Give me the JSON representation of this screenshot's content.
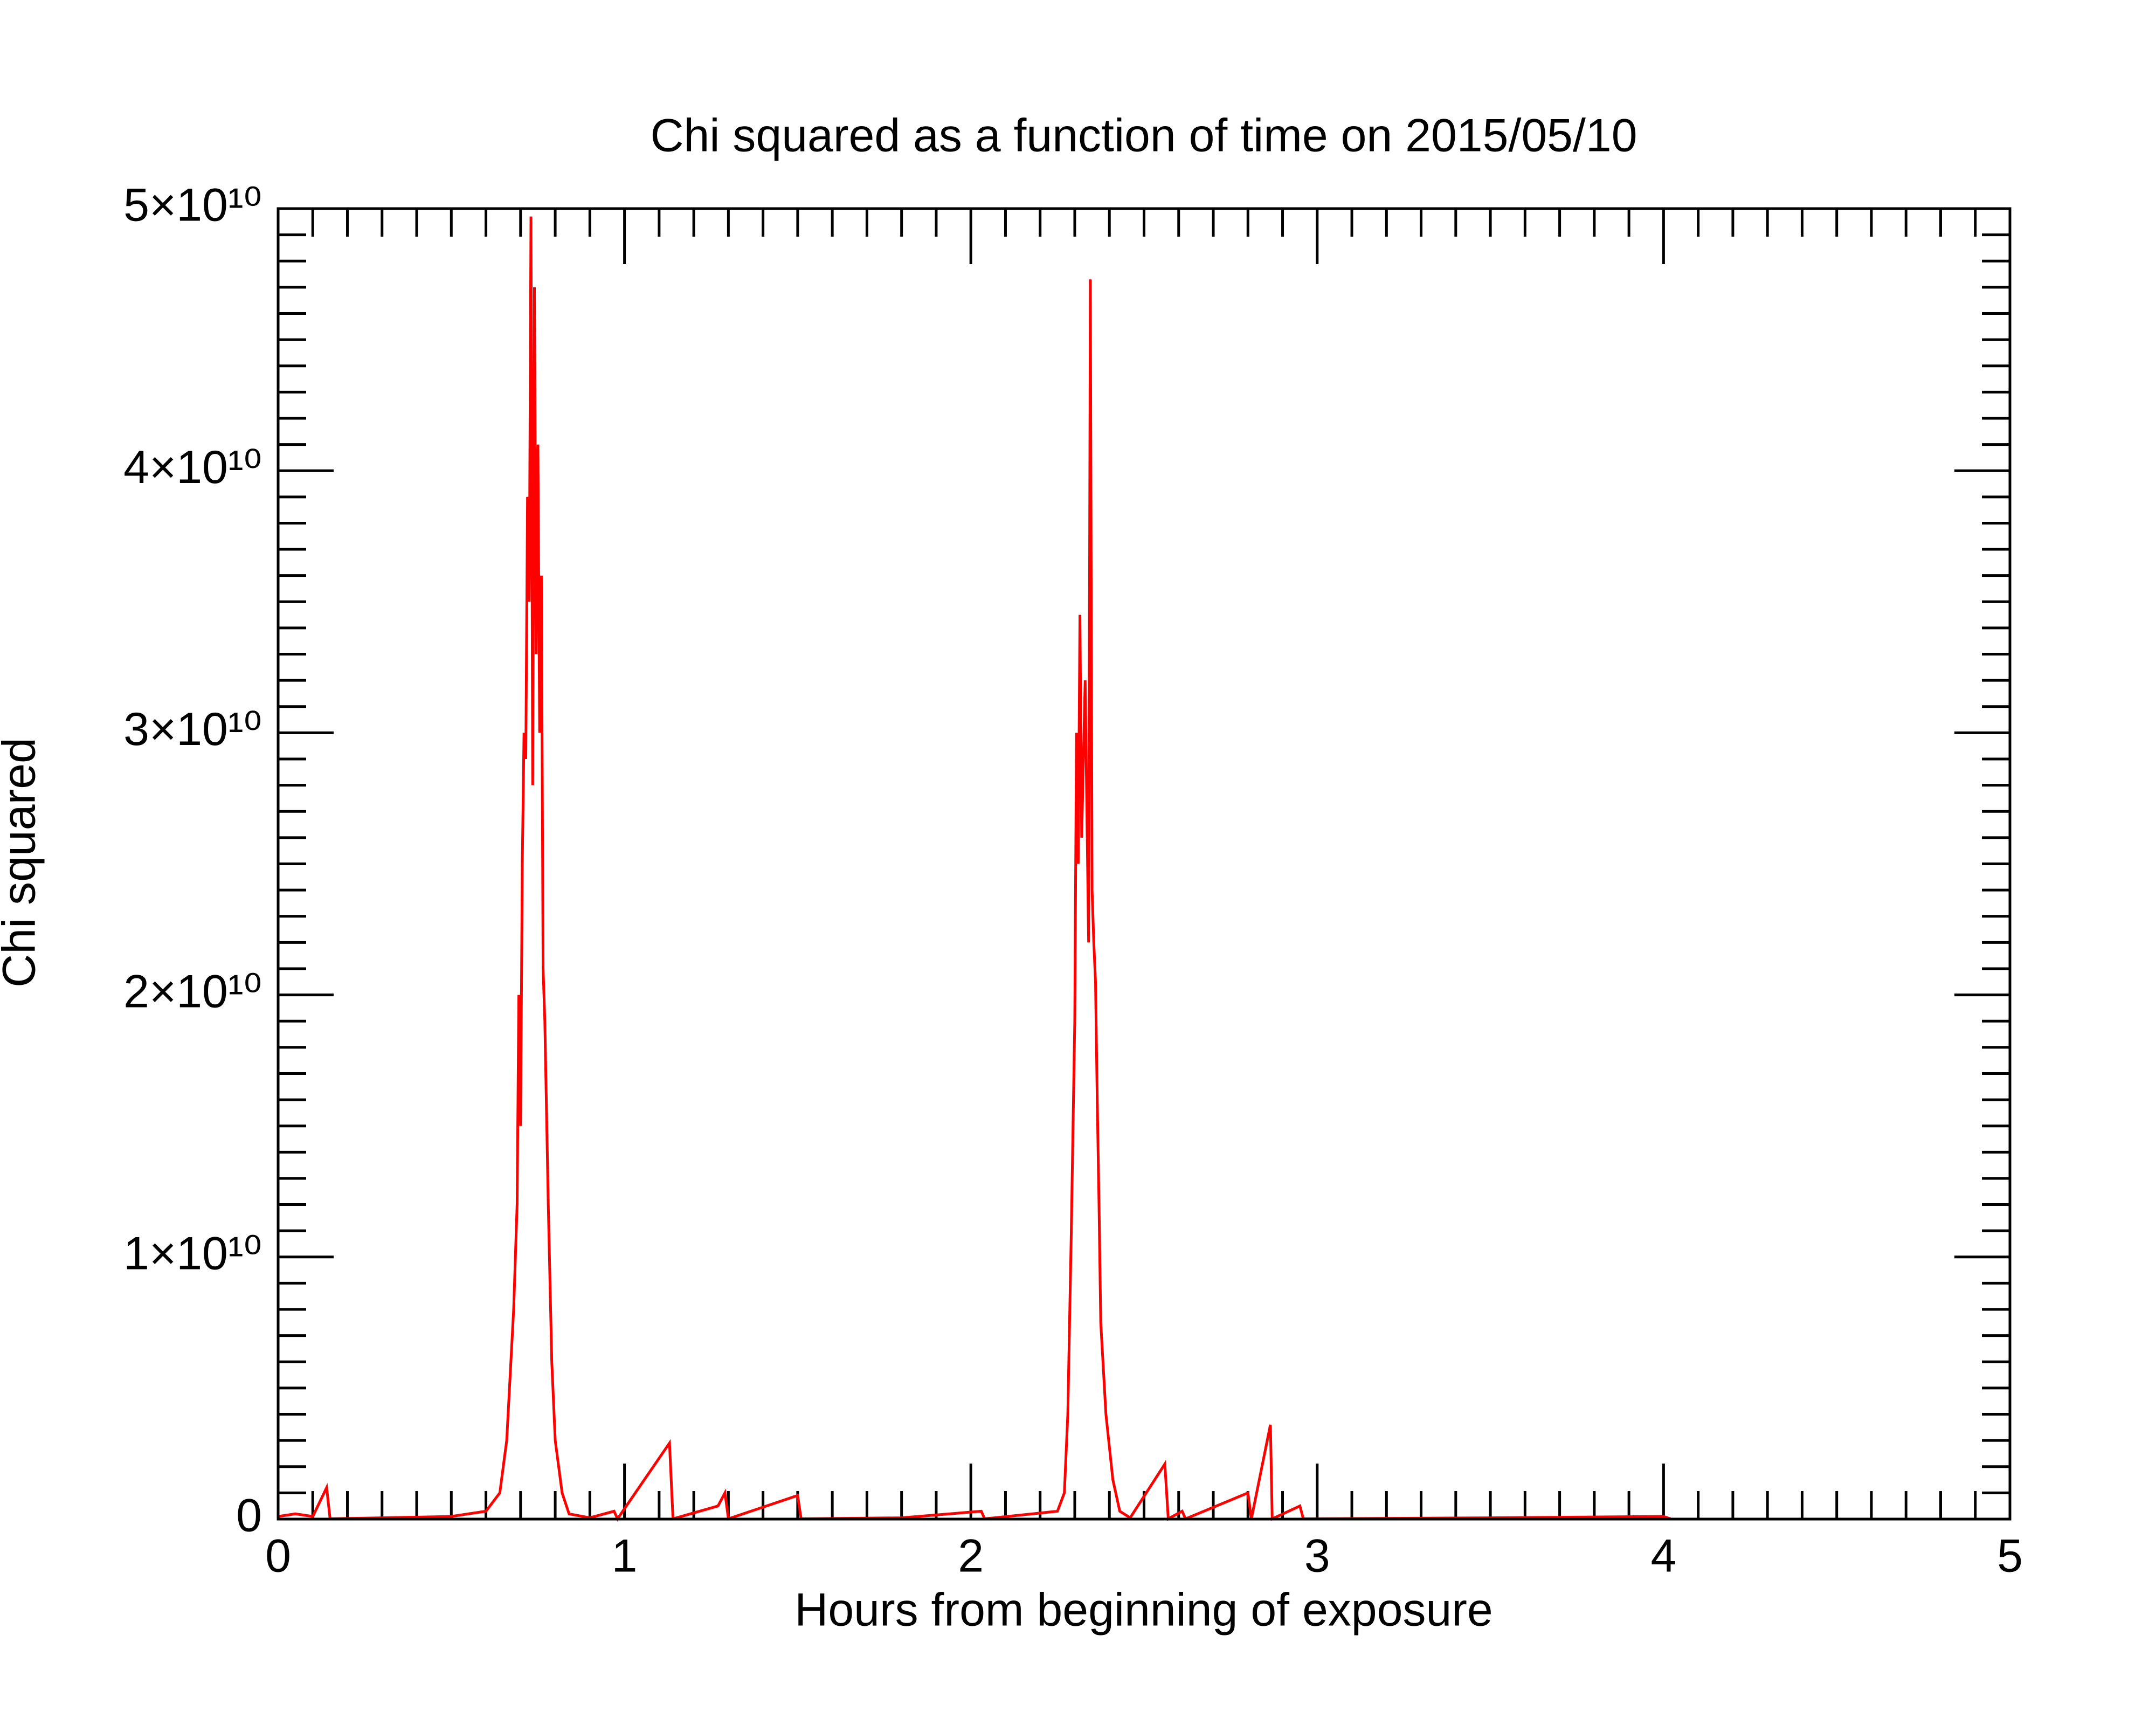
{
  "chart_data": {
    "type": "line",
    "title": "Chi squared as a function of time on 2015/05/10",
    "xlabel": "Hours from beginning of exposure",
    "ylabel": "Chi squared",
    "xlim": [
      0,
      5
    ],
    "xticks": [
      0,
      1,
      2,
      3,
      4,
      5
    ],
    "ylim": [
      0,
      50000000000
    ],
    "yticks": [
      0,
      {
        "value": 10000000000,
        "label": "1×10¹⁰"
      },
      {
        "value": 20000000000,
        "label": "2×10¹⁰"
      },
      {
        "value": 30000000000,
        "label": "3×10¹⁰"
      },
      {
        "value": 40000000000,
        "label": "4×10¹⁰"
      },
      {
        "value": 50000000000,
        "label": "5×10¹⁰"
      }
    ],
    "xminor": 10,
    "yminor": 10,
    "grid": false,
    "series": [
      {
        "color": "#ff0000",
        "x": [
          0.0,
          0.05,
          0.1,
          0.14,
          0.15,
          0.3,
          0.5,
          0.6,
          0.64,
          0.66,
          0.68,
          0.69,
          0.695,
          0.7,
          0.705,
          0.71,
          0.715,
          0.72,
          0.725,
          0.73,
          0.735,
          0.74,
          0.745,
          0.75,
          0.755,
          0.76,
          0.765,
          0.77,
          0.78,
          0.79,
          0.8,
          0.82,
          0.84,
          0.9,
          0.97,
          0.98,
          1.13,
          1.14,
          1.27,
          1.29,
          1.3,
          1.5,
          1.51,
          1.8,
          2.03,
          2.04,
          2.25,
          2.27,
          2.28,
          2.29,
          2.3,
          2.305,
          2.31,
          2.315,
          2.32,
          2.33,
          2.34,
          2.345,
          2.35,
          2.355,
          2.36,
          2.365,
          2.37,
          2.375,
          2.39,
          2.41,
          2.43,
          2.46,
          2.56,
          2.57,
          2.61,
          2.62,
          2.8,
          2.81,
          2.865,
          2.87,
          2.95,
          2.96,
          3.5,
          4.0,
          4.02
        ],
        "values": [
          100000000.0,
          200000000.0,
          100000000.0,
          1200000000.0,
          10000000.0,
          50000000.0,
          100000000.0,
          300000000.0,
          1000000000.0,
          3000000000.0,
          8000000000.0,
          12000000000.0,
          20000000000.0,
          15000000000.0,
          25000000000.0,
          30000000000.0,
          29000000000.0,
          39000000000.0,
          35000000000.0,
          49700000000.0,
          28000000000.0,
          47000000000.0,
          33000000000.0,
          41000000000.0,
          30000000000.0,
          36000000000.0,
          21000000000.0,
          19000000000.0,
          12000000000.0,
          6000000000.0,
          3000000000.0,
          1000000000.0,
          200000000.0,
          50000000.0,
          300000000.0,
          10000000.0,
          2900000000.0,
          10000000.0,
          500000000.0,
          1000000000.0,
          10000000.0,
          900000000.0,
          10000000.0,
          50000000.0,
          300000000.0,
          10000000.0,
          300000000.0,
          1000000000.0,
          4000000000.0,
          11000000000.0,
          19000000000.0,
          30000000000.0,
          25000000000.0,
          34500000000.0,
          26000000000.0,
          32000000000.0,
          22000000000.0,
          47300000000.0,
          24000000000.0,
          22000000000.0,
          20500000000.0,
          16000000000.0,
          12000000000.0,
          7500000000.0,
          4000000000.0,
          1500000000.0,
          300000000.0,
          50000000.0,
          2100000000.0,
          10000000.0,
          300000000.0,
          10000000.0,
          1000000000.0,
          10000000.0,
          3600000000.0,
          10000000.0,
          500000000.0,
          10000000.0,
          50000000.0,
          100000000.0,
          10000000.0
        ]
      }
    ]
  }
}
